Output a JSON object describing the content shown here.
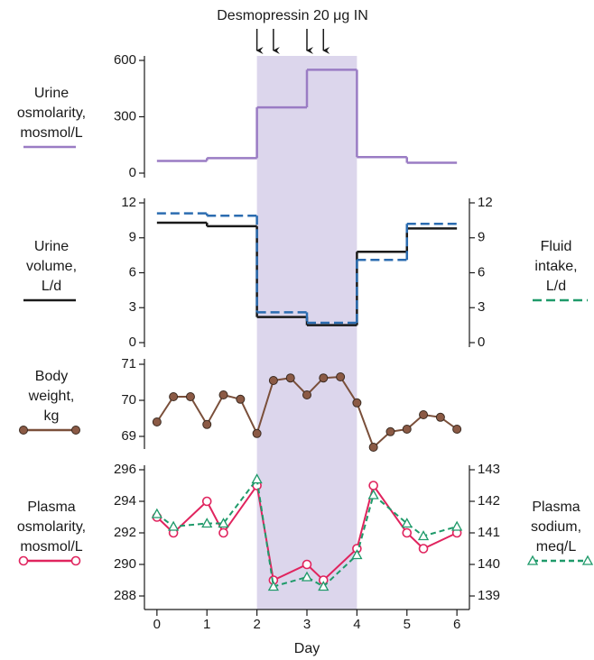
{
  "chart_data": [
    {
      "type": "step",
      "annotation": {
        "text": "Desmopressin 20 μg IN",
        "x": [
          2,
          2.33,
          3,
          3.33
        ]
      },
      "shade": [
        2,
        4
      ],
      "ylim": [
        0,
        600
      ],
      "yticks": [
        0,
        300,
        600
      ],
      "series": [
        {
          "name": [
            "Urine",
            "osmolarity,",
            "mosmol/L"
          ],
          "color": "#9a7cc4",
          "bins": [
            0,
            1,
            2,
            3,
            4,
            5,
            6
          ],
          "values": [
            65,
            80,
            350,
            550,
            85,
            55
          ]
        }
      ]
    },
    {
      "type": "step",
      "ylim": [
        0,
        12
      ],
      "yticks": [
        0,
        3,
        6,
        9,
        12
      ],
      "y2lim": [
        0,
        12
      ],
      "y2ticks": [
        0,
        3,
        6,
        9,
        12
      ],
      "series": [
        {
          "name": [
            "Urine",
            "volume,",
            "L/d"
          ],
          "color": "#1a1a1a",
          "bins": [
            0,
            1,
            2,
            3,
            4,
            5,
            6
          ],
          "values": [
            10.3,
            10.0,
            2.2,
            1.5,
            7.8,
            9.8
          ]
        },
        {
          "name": [
            "Fluid",
            "intake,",
            "L/d"
          ],
          "color": "#2b6cb0",
          "legend_color": "#1f9a6a",
          "dash": true,
          "axis": "y2",
          "bins": [
            0,
            1,
            2,
            3,
            4,
            5,
            6
          ],
          "values": [
            11.1,
            10.9,
            2.6,
            1.7,
            7.1,
            10.2
          ]
        }
      ]
    },
    {
      "type": "line",
      "ylim": [
        69,
        71
      ],
      "yticks": [
        69,
        70,
        71
      ],
      "series": [
        {
          "name": [
            "Body",
            "weight,",
            "kg"
          ],
          "color": "#7a4f3a",
          "marker": "filled-circle",
          "x": [
            0,
            0.33,
            0.67,
            1,
            1.33,
            1.67,
            2,
            2.33,
            2.67,
            3,
            3.33,
            3.67,
            4,
            4.33,
            4.67,
            5,
            5.33,
            5.67,
            6
          ],
          "values": [
            69.4,
            70.1,
            70.1,
            69.33,
            70.15,
            70.03,
            69.08,
            70.55,
            70.62,
            70.15,
            70.62,
            70.65,
            69.93,
            68.7,
            69.13,
            69.2,
            69.6,
            69.53,
            69.2
          ]
        }
      ]
    },
    {
      "type": "line",
      "ylim": [
        288,
        296
      ],
      "yticks": [
        288,
        290,
        292,
        294,
        296
      ],
      "y2lim": [
        139,
        143
      ],
      "y2ticks": [
        139,
        140,
        141,
        142,
        143
      ],
      "xlim": [
        -0.25,
        6.25
      ],
      "xticks": [
        0,
        1,
        2,
        3,
        4,
        5,
        6
      ],
      "xlabel": "Day",
      "series": [
        {
          "name": [
            "Plasma",
            "osmolarity,",
            "mosmol/L"
          ],
          "color": "#e0245e",
          "marker": "open-circle",
          "x": [
            0,
            0.33,
            1,
            1.33,
            2,
            2.33,
            3,
            3.33,
            4,
            4.33,
            5,
            5.33,
            6
          ],
          "values": [
            293,
            292,
            294,
            292,
            295,
            289,
            290,
            289,
            291,
            295,
            292,
            291,
            292
          ]
        },
        {
          "name": [
            "Plasma",
            "sodium,",
            "meq/L"
          ],
          "color": "#1f9a6a",
          "marker": "open-triangle",
          "dash": true,
          "axis": "y2",
          "x": [
            0,
            0.33,
            1,
            1.33,
            2,
            2.33,
            3,
            3.33,
            4,
            4.33,
            5,
            5.33,
            6
          ],
          "values": [
            141.6,
            141.2,
            141.3,
            141.3,
            142.7,
            139.3,
            139.6,
            139.3,
            140.3,
            142.2,
            141.3,
            140.9,
            141.2
          ]
        }
      ]
    }
  ]
}
